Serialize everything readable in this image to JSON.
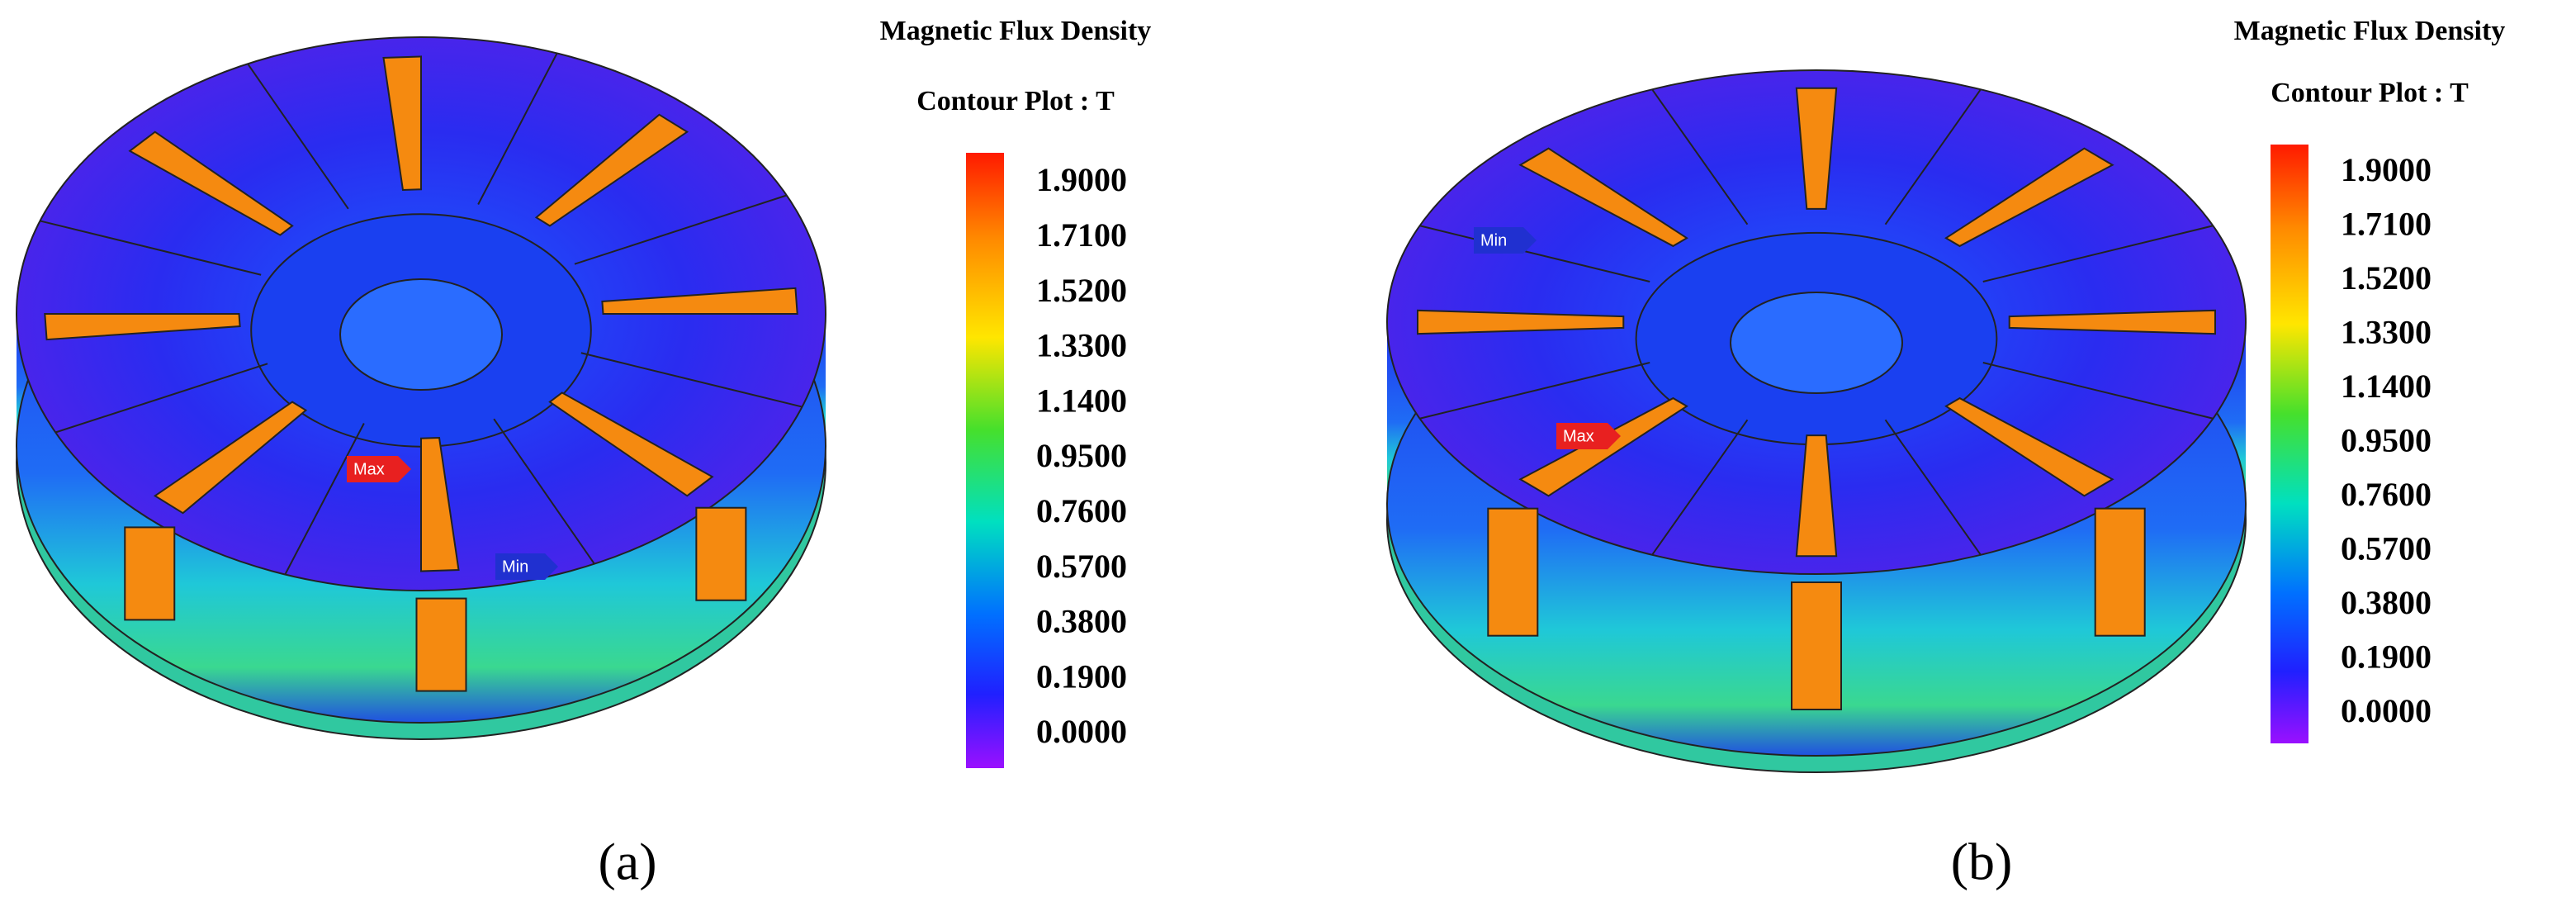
{
  "panels": [
    {
      "legend": {
        "title": "Magnetic Flux Density",
        "subtitle": "Contour Plot : T",
        "ticks": [
          "1.9000",
          "1.7100",
          "1.5200",
          "1.3300",
          "1.1400",
          "0.9500",
          "0.7600",
          "0.5700",
          "0.3800",
          "0.1900",
          "0.0000"
        ]
      },
      "markers": {
        "max": "Max",
        "min": "Min"
      },
      "caption": "(a)"
    },
    {
      "legend": {
        "title": "Magnetic Flux Density",
        "subtitle": "Contour Plot : T",
        "ticks": [
          "1.9000",
          "1.7100",
          "1.5200",
          "1.3300",
          "1.1400",
          "0.9500",
          "0.7600",
          "0.5700",
          "0.3800",
          "0.1900",
          "0.0000"
        ]
      },
      "markers": {
        "max": "Max",
        "min": "Min"
      },
      "caption": "(b)"
    }
  ]
}
